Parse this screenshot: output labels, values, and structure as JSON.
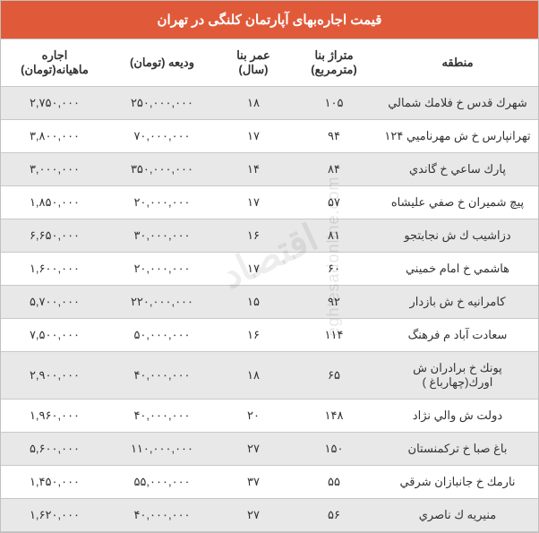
{
  "title": "قیمت اجاره‌بهای آپارتمان کلنگی در تهران",
  "title_bg": "#e05a3a",
  "title_color": "#ffffff",
  "row_odd_bg": "#e8e8e8",
  "row_even_bg": "#ffffff",
  "border_color": "#c8c8c8",
  "text_color": "#333333",
  "columns": [
    {
      "key": "region",
      "label": "منطقه",
      "width": "30%"
    },
    {
      "key": "area",
      "label": "متراژ بنا (مترمربع)",
      "width": "16%"
    },
    {
      "key": "age",
      "label": "عمر بنا (سال)",
      "width": "14%"
    },
    {
      "key": "deposit",
      "label": "ودیعه (تومان)",
      "width": "20%"
    },
    {
      "key": "rent",
      "label": "اجاره ماهیانه(تومان)",
      "width": "20%"
    }
  ],
  "rows": [
    {
      "region": "شهرك قدس خ فلامك شمالي",
      "area": "۱۰۵",
      "age": "۱۸",
      "deposit": "۲۵۰,۰۰۰,۰۰۰",
      "rent": "۲,۷۵۰,۰۰۰"
    },
    {
      "region": "تهرانپارس خ ش مهرناميي ۱۲۴",
      "area": "۹۴",
      "age": "۱۷",
      "deposit": "۷۰,۰۰۰,۰۰۰",
      "rent": "۳,۸۰۰,۰۰۰"
    },
    {
      "region": "پارك ساعي خ گاندي",
      "area": "۸۴",
      "age": "۱۴",
      "deposit": "۳۵۰,۰۰۰,۰۰۰",
      "rent": "۳,۰۰۰,۰۰۰"
    },
    {
      "region": "پيچ شميران خ صفي عليشاه",
      "area": "۵۷",
      "age": "۱۷",
      "deposit": "۲۰,۰۰۰,۰۰۰",
      "rent": "۱,۸۵۰,۰۰۰"
    },
    {
      "region": "دزاشيب ك ش نجابتجو",
      "area": "۸۱",
      "age": "۱۶",
      "deposit": "۳۰,۰۰۰,۰۰۰",
      "rent": "۶,۶۵۰,۰۰۰"
    },
    {
      "region": "هاشمي خ امام خميني",
      "area": "۶۰",
      "age": "۱۷",
      "deposit": "۲۰,۰۰۰,۰۰۰",
      "rent": "۱,۶۰۰,۰۰۰"
    },
    {
      "region": "كامرانيه خ ش بازدار",
      "area": "۹۲",
      "age": "۱۵",
      "deposit": "۲۲۰,۰۰۰,۰۰۰",
      "rent": "۵,۷۰۰,۰۰۰"
    },
    {
      "region": "سعادت آباد م فرهنگ",
      "area": "۱۱۴",
      "age": "۱۶",
      "deposit": "۵۰,۰۰۰,۰۰۰",
      "rent": "۷,۵۰۰,۰۰۰"
    },
    {
      "region": "پونك خ برادران ش اورك(چهارباغ )",
      "area": "۶۵",
      "age": "۱۸",
      "deposit": "۴۰,۰۰۰,۰۰۰",
      "rent": "۲,۹۰۰,۰۰۰"
    },
    {
      "region": "دولت ش والي نژاد",
      "area": "۱۴۸",
      "age": "۲۰",
      "deposit": "۴۰,۰۰۰,۰۰۰",
      "rent": "۱,۹۶۰,۰۰۰"
    },
    {
      "region": "باغ صبا خ تركمنستان",
      "area": "۱۵۰",
      "age": "۲۷",
      "deposit": "۱۱۰,۰۰۰,۰۰۰",
      "rent": "۵,۶۰۰,۰۰۰"
    },
    {
      "region": "نارمك خ جانبازان شرقي",
      "area": "۵۵",
      "age": "۳۷",
      "deposit": "۵۵,۰۰۰,۰۰۰",
      "rent": "۱,۴۵۰,۰۰۰"
    },
    {
      "region": "منيريه ك ناصري",
      "area": "۵۶",
      "age": "۲۷",
      "deposit": "۴۰,۰۰۰,۰۰۰",
      "rent": "۱,۶۲۰,۰۰۰"
    }
  ],
  "watermark_main": "اقتصاد",
  "watermark_side": "eghtesadonline.com"
}
